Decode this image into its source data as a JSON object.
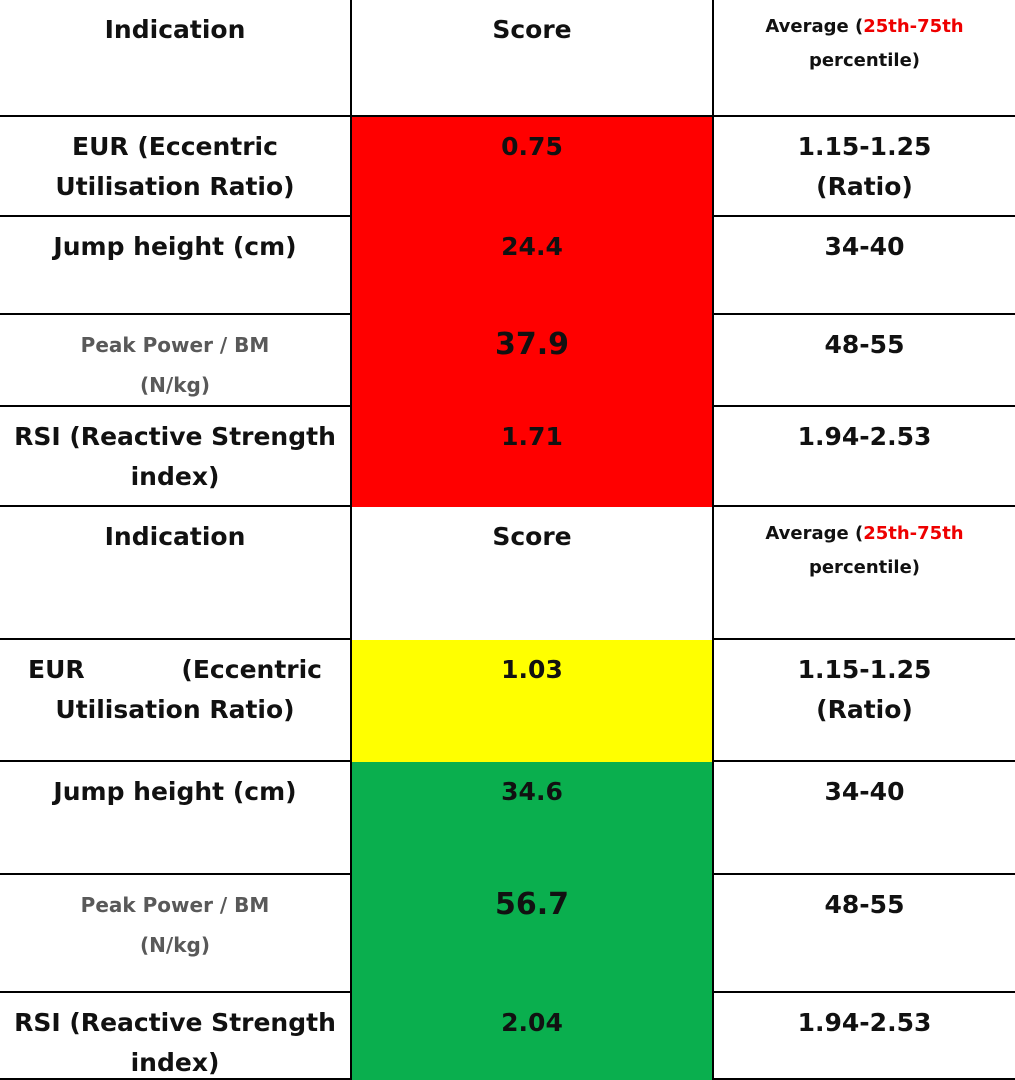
{
  "tables": [
    {
      "header": {
        "indication": "Indication",
        "score": "Score",
        "average": {
          "prefix": "Average (",
          "highlight": "25th-75th",
          "suffix": "percentile)"
        }
      },
      "rows": [
        {
          "indication": [
            "EUR (Eccentric",
            "Utilisation Ratio)"
          ],
          "score": 0.75,
          "color": "#ff0000",
          "average": [
            "1.15-1.25",
            "(Ratio)"
          ]
        },
        {
          "indication": [
            "Jump height (cm)"
          ],
          "score": 24.4,
          "color": "#ff0000",
          "average": [
            "34-40"
          ]
        },
        {
          "indication": [
            "Peak Power / BM",
            "(N/kg)"
          ],
          "score": 37.9,
          "color": "#ff0000",
          "average": [
            "48-55"
          ]
        },
        {
          "indication": [
            "RSI (Reactive Strength",
            "index)"
          ],
          "score": 1.71,
          "color": "#ff0000",
          "average": [
            "1.94-2.53"
          ]
        }
      ]
    },
    {
      "header": {
        "indication": "Indication",
        "score": "Score",
        "average": {
          "prefix": "Average (",
          "highlight": "25th-75th",
          "suffix": "percentile)"
        }
      },
      "rows": [
        {
          "indication": [
            "EUR (Eccentric",
            "Utilisation Ratio)"
          ],
          "score": 1.03,
          "color": "#ffff00",
          "average": [
            "1.15-1.25",
            "(Ratio)"
          ]
        },
        {
          "indication": [
            "Jump height (cm)"
          ],
          "score": 34.6,
          "color": "#0aaf4e",
          "average": [
            "34-40"
          ]
        },
        {
          "indication": [
            "Peak Power / BM",
            "(N/kg)"
          ],
          "score": 56.7,
          "color": "#0aaf4e",
          "average": [
            "48-55"
          ]
        },
        {
          "indication": [
            "RSI (Reactive Strength",
            "index)"
          ],
          "score": 2.04,
          "color": "#0aaf4e",
          "average": [
            "1.94-2.53"
          ]
        }
      ]
    }
  ]
}
